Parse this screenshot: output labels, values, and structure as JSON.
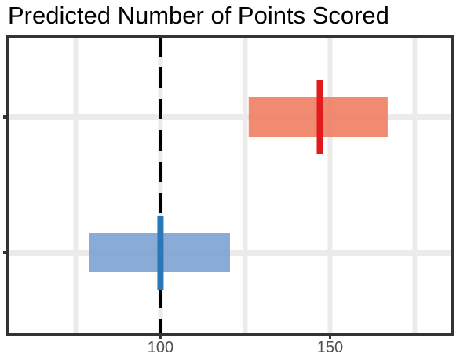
{
  "chart_data": {
    "type": "interval",
    "title": "Predicted Number of Points Scored",
    "xlabel": "",
    "ylabel": "",
    "xlim": [
      55,
      186
    ],
    "xticks": [
      100,
      150
    ],
    "x_minor_gridlines": [
      75,
      125,
      175
    ],
    "grid": true,
    "reference_line": {
      "x": 100,
      "style": "dashed",
      "color": "#000000"
    },
    "series": [
      {
        "interval": [
          126,
          167
        ],
        "point": 147,
        "box_color": "#ee7b5f",
        "point_color": "#e31a1c"
      },
      {
        "interval": [
          79,
          120.5
        ],
        "point": 100,
        "box_color": "#7b9fd2",
        "point_color": "#2b78b8"
      }
    ]
  }
}
